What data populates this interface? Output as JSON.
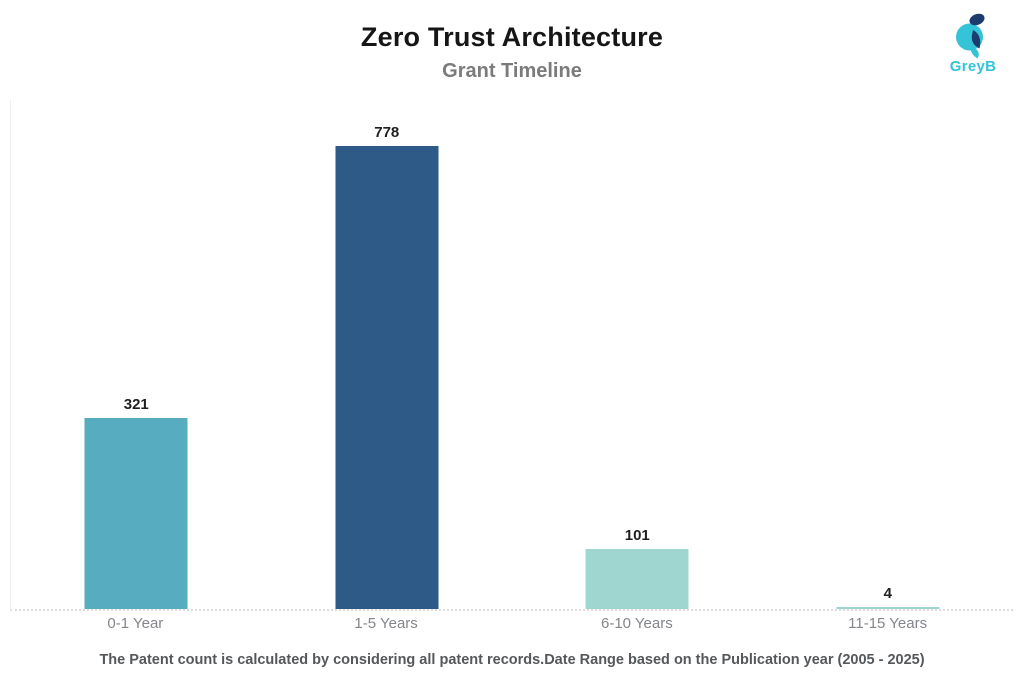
{
  "header": {
    "title": "Zero Trust Architecture",
    "subtitle": "Grant Timeline"
  },
  "logo": {
    "text": "GreyB",
    "primary_color": "#35c4d7",
    "dark_color": "#1c3b6e"
  },
  "chart_data": {
    "type": "bar",
    "title": "Zero Trust Architecture",
    "subtitle": "Grant Timeline",
    "categories": [
      "0-1 Year",
      "1-5 Years",
      "6-10 Years",
      "11-15 Years"
    ],
    "values": [
      321,
      778,
      101,
      4
    ],
    "value_labels": [
      "321",
      "778",
      "101",
      "4"
    ],
    "bar_colors": [
      "#57acc0",
      "#2e5a88",
      "#a0d6d0",
      "#a0d6d0"
    ],
    "xlabel": "",
    "ylabel": "",
    "ylim": [
      0,
      778
    ],
    "grid": false,
    "legend": "none",
    "axis_line_color": "#ececec",
    "baseline_color": "#dcdcdc",
    "value_label_color": "#1f1f1f",
    "tick_label_color": "#83868a"
  },
  "footer": {
    "note": "The Patent count is calculated by considering all patent records.Date Range based on the Publication year (2005 - 2025)"
  }
}
